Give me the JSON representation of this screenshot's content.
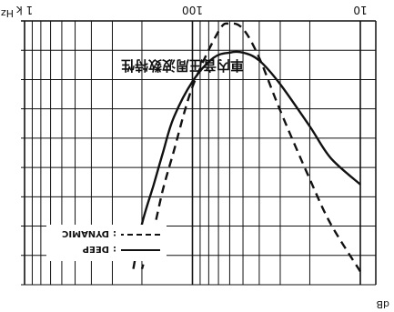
{
  "chart_data": {
    "type": "line",
    "title": "車内音圧周波数特性",
    "xlabel": "Hz",
    "ylabel": "dB",
    "x_scale": "log",
    "xlim": [
      10,
      1000
    ],
    "x_ticks": [
      {
        "value": 10,
        "label": "10"
      },
      {
        "value": 100,
        "label": "100"
      },
      {
        "value": 1000,
        "label": "1 k"
      }
    ],
    "grid": true,
    "legend_position": "bottom-left",
    "series": [
      {
        "name": "DEEP",
        "style": "solid",
        "color": "#111111",
        "points": [
          [
            10,
            0.62
          ],
          [
            15,
            0.52
          ],
          [
            20,
            0.4
          ],
          [
            30,
            0.24
          ],
          [
            40,
            0.15
          ],
          [
            50,
            0.12
          ],
          [
            60,
            0.12
          ],
          [
            75,
            0.14
          ],
          [
            100,
            0.23
          ],
          [
            130,
            0.37
          ],
          [
            150,
            0.5
          ],
          [
            170,
            0.62
          ],
          [
            200,
            0.77
          ],
          [
            225,
            0.94
          ]
        ]
      },
      {
        "name": "DYNAMIC",
        "style": "dashed",
        "color": "#111111",
        "points": [
          [
            10,
            0.95
          ],
          [
            15,
            0.77
          ],
          [
            20,
            0.6
          ],
          [
            30,
            0.34
          ],
          [
            40,
            0.14
          ],
          [
            50,
            0.03
          ],
          [
            60,
            0.01
          ],
          [
            70,
            0.04
          ],
          [
            100,
            0.25
          ],
          [
            130,
            0.5
          ],
          [
            150,
            0.64
          ],
          [
            170,
            0.79
          ],
          [
            200,
            0.94
          ]
        ]
      }
    ]
  }
}
